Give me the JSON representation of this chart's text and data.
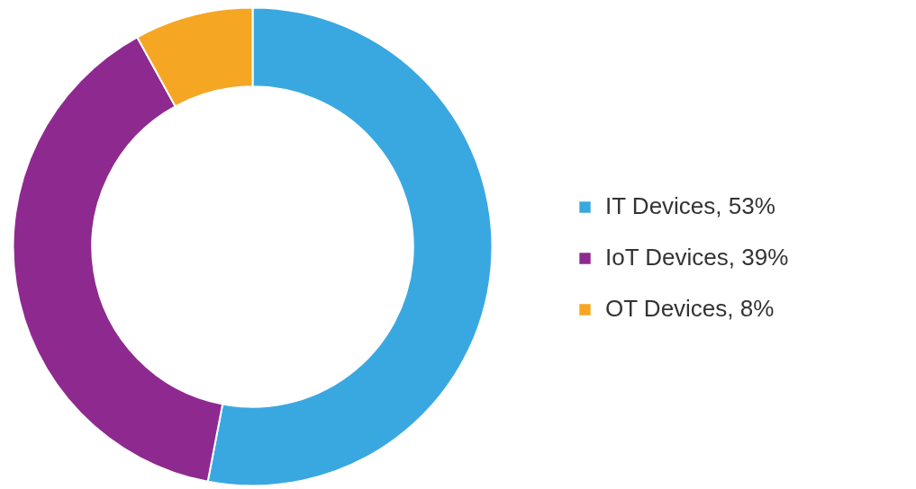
{
  "chart_data": {
    "type": "donut",
    "categories": [
      "IT Devices",
      "IoT Devices",
      "OT Devices"
    ],
    "values": [
      53,
      39,
      8
    ],
    "colors": [
      "#3aa8e0",
      "#8e2a8f",
      "#f5a623"
    ],
    "value_labels": [
      "53%",
      "39%",
      "8%"
    ],
    "legend": "right"
  }
}
